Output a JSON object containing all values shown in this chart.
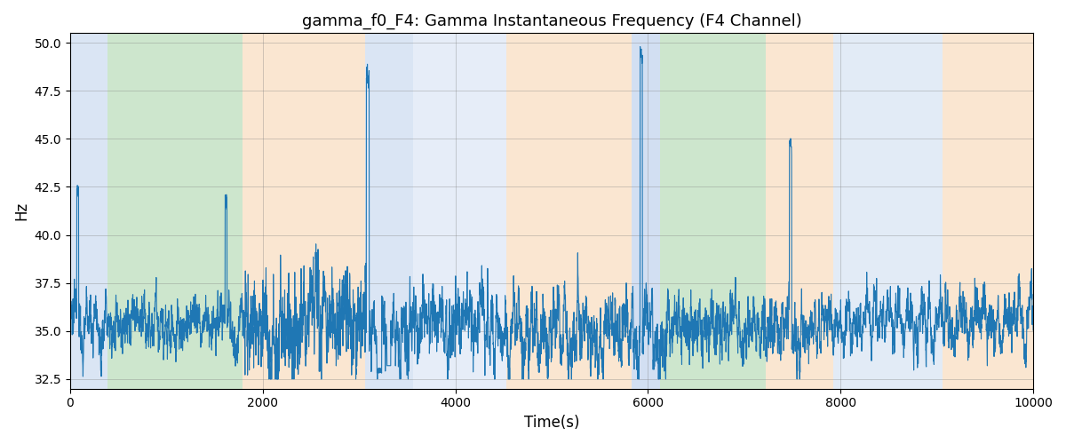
{
  "title": "gamma_f0_F4: Gamma Instantaneous Frequency (F4 Channel)",
  "xlabel": "Time(s)",
  "ylabel": "Hz",
  "xlim": [
    0,
    10000
  ],
  "ylim": [
    32,
    50.5
  ],
  "yticks": [
    32.5,
    35.0,
    37.5,
    40.0,
    42.5,
    45.0,
    47.5,
    50.0
  ],
  "line_color": "#1f77b4",
  "line_width": 0.8,
  "background_color": "#ffffff",
  "bands": [
    {
      "start": 0,
      "end": 390,
      "color": "#aec6e8",
      "alpha": 0.45
    },
    {
      "start": 390,
      "end": 1790,
      "color": "#90c890",
      "alpha": 0.45
    },
    {
      "start": 1790,
      "end": 3060,
      "color": "#f5c89a",
      "alpha": 0.45
    },
    {
      "start": 3060,
      "end": 3560,
      "color": "#aec6e8",
      "alpha": 0.45
    },
    {
      "start": 3560,
      "end": 4530,
      "color": "#aec6e8",
      "alpha": 0.3
    },
    {
      "start": 4530,
      "end": 5830,
      "color": "#f5c89a",
      "alpha": 0.45
    },
    {
      "start": 5830,
      "end": 6130,
      "color": "#aec6e8",
      "alpha": 0.55
    },
    {
      "start": 6130,
      "end": 7220,
      "color": "#90c890",
      "alpha": 0.45
    },
    {
      "start": 7220,
      "end": 7920,
      "color": "#f5c89a",
      "alpha": 0.45
    },
    {
      "start": 7920,
      "end": 9060,
      "color": "#aec6e8",
      "alpha": 0.35
    },
    {
      "start": 9060,
      "end": 10000,
      "color": "#f5c89a",
      "alpha": 0.45
    }
  ],
  "seed": 12345,
  "n_points": 5000
}
